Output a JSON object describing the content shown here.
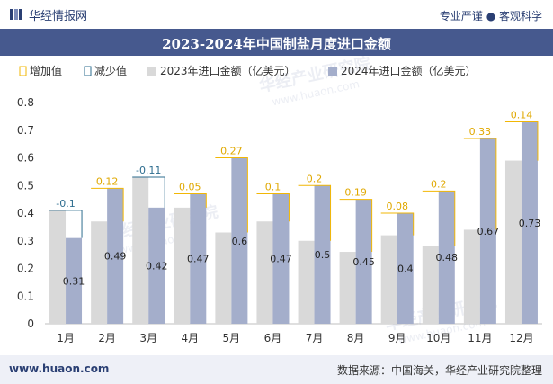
{
  "header": {
    "brand": "华经情报网",
    "slogan": "专业严谨 ● 客观科学"
  },
  "footer": {
    "website": "www.huaon.com",
    "source": "数据来源：中国海关，华经产业研究院整理"
  },
  "watermark": {
    "cn": "华经产业研究院",
    "en": "www.huaon.com"
  },
  "colors": {
    "title_bg": "#46598e",
    "bar_2023": "#d9d9d9",
    "bar_2024": "#a4aecb",
    "increase_line": "#f2b705",
    "decrease_line": "#2e6d8f"
  },
  "chart_data": {
    "type": "bar",
    "title": "2023-2024年中国制盐月度进口金额",
    "categories": [
      "1月",
      "2月",
      "3月",
      "4月",
      "5月",
      "6月",
      "7月",
      "8月",
      "9月",
      "10月",
      "11月",
      "12月"
    ],
    "series": [
      {
        "name": "2023年进口金额（亿美元）",
        "values": [
          0.41,
          0.37,
          0.53,
          0.42,
          0.33,
          0.37,
          0.3,
          0.26,
          0.32,
          0.28,
          0.34,
          0.59
        ]
      },
      {
        "name": "2024年进口金额（亿美元）",
        "values": [
          0.31,
          0.49,
          0.42,
          0.47,
          0.6,
          0.47,
          0.5,
          0.45,
          0.4,
          0.48,
          0.67,
          0.73
        ]
      }
    ],
    "change": {
      "values": [
        -0.1,
        0.12,
        -0.11,
        0.05,
        0.27,
        0.1,
        0.2,
        0.19,
        0.08,
        0.2,
        0.33,
        0.14
      ],
      "labels": [
        "-0.1",
        "0.12",
        "-0.11",
        "0.05",
        "0.27",
        "0.1",
        "0.2",
        "0.19",
        "0.08",
        "0.2",
        "0.33",
        "0.14"
      ]
    },
    "value_labels_2024": [
      "0.31",
      "0.49",
      "0.42",
      "0.47",
      "0.6",
      "0.47",
      "0.5",
      "0.45",
      "0.4",
      "0.48",
      "0.67",
      "0.73"
    ],
    "legend": [
      "增加值",
      "减少值",
      "2023年进口金额（亿美元）",
      "2024年进口金额（亿美元）"
    ],
    "legend_position": "top-left",
    "ylim": [
      0,
      0.8
    ],
    "yticks": [
      "0",
      "0.1",
      "0.2",
      "0.3",
      "0.4",
      "0.5",
      "0.6",
      "0.7",
      "0.8"
    ],
    "grid": false
  }
}
